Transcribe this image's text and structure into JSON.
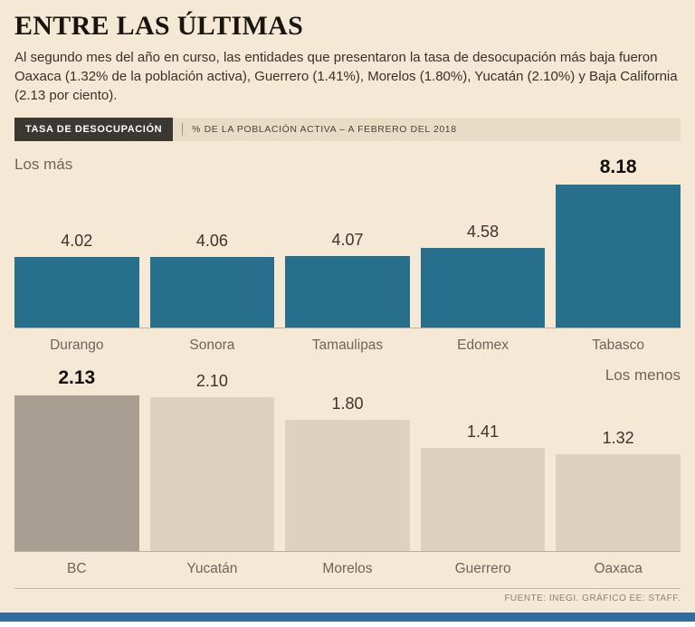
{
  "page": {
    "title": "ENTRE LAS ÚLTIMAS",
    "intro": "Al segundo mes del año en curso, las entidades que presentaron la tasa de desocupación más baja fueron Oaxaca (1.32% de la población activa), Guerrero (1.41%), Morelos (1.80%), Yucatán (2.10%) y Baja California (2.13 por ciento).",
    "kicker_label": "TASA DE DESOCUPACIÓN",
    "kicker_sub": "% DE LA POBLACIÓN ACTIVA – A FEBRERO DEL 2018",
    "footer": "FUENTE: INEGI.  GRÁFICO EE: STAFF.",
    "colors": {
      "background": "#f5e9d5",
      "kicker_band": "#e9dcc5",
      "kicker_label_bg": "#3b3733",
      "bottom_strip": "#2e6d9d"
    }
  },
  "chart_data": [
    {
      "type": "bar",
      "title": "Los más",
      "title_align": "left",
      "categories": [
        "Durango",
        "Sonora",
        "Tamaulipas",
        "Edomex",
        "Tabasco"
      ],
      "values": [
        4.02,
        4.06,
        4.07,
        4.58,
        8.18
      ],
      "ylim": [
        0,
        8.18
      ],
      "ylabel": "% de la población activa",
      "bar_color": "#26708d",
      "emphasis_index": 4,
      "grid": false,
      "legend": false
    },
    {
      "type": "bar",
      "title": "Los menos",
      "title_align": "right",
      "categories": [
        "BC",
        "Yucatán",
        "Morelos",
        "Guerrero",
        "Oaxaca"
      ],
      "values": [
        2.13,
        2.1,
        1.8,
        1.41,
        1.32
      ],
      "ylim": [
        0,
        2.13
      ],
      "ylabel": "% de la población activa",
      "bar_color": "#ded1be",
      "highlight_index": 0,
      "highlight_color": "#a89e92",
      "emphasis_index": 0,
      "grid": false,
      "legend": false
    }
  ]
}
